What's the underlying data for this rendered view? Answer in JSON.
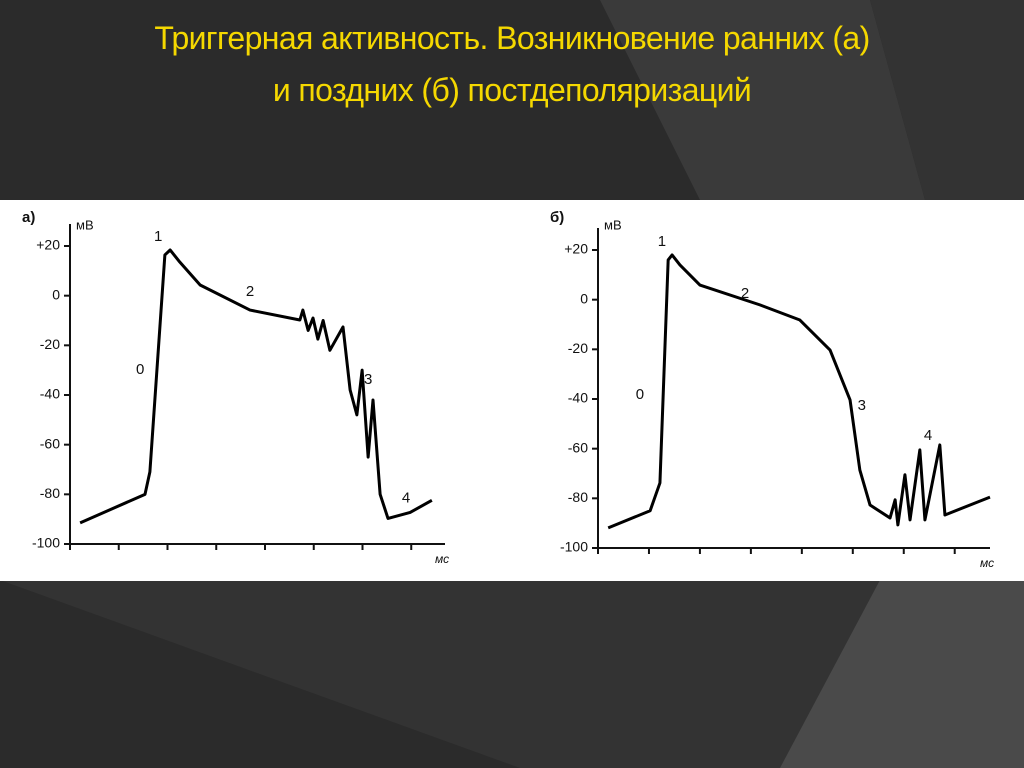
{
  "title": [
    "Триггерная активность. Возникновение ранних (а)",
    "и поздних (б) постдеполяризаций"
  ],
  "chart_data": [
    {
      "type": "line",
      "panel_label": "а)",
      "y_label": "мВ",
      "x_label": "мс",
      "xlim": [
        0,
        100
      ],
      "ylim": [
        -100,
        20
      ],
      "xticks": [
        0,
        13,
        26,
        39,
        52,
        65,
        78,
        91
      ],
      "yticks": [
        {
          "value": 20,
          "label": "+20"
        },
        0,
        -20,
        -40,
        -60,
        -80,
        -100
      ],
      "color": "#000000",
      "series": [
        {
          "x": [
            2.7,
            20,
            21.3,
            25.3,
            26.7,
            29.3,
            34.7,
            48,
            61.3,
            62.1,
            63.5,
            64.8,
            66.1,
            67.5,
            69.3,
            72.8,
            74.7,
            76.5,
            77.9,
            79.5,
            80.8,
            82.7,
            84.8,
            90.7,
            96.5
          ],
          "values": [
            -91.5,
            -80,
            -71,
            16.4,
            18.4,
            13.5,
            4.3,
            -5.8,
            -9.8,
            -5.8,
            -14,
            -9,
            -17.5,
            -10,
            -22,
            -12.6,
            -38,
            -48,
            -30,
            -65,
            -42,
            -80,
            -89.7,
            -87.3,
            -82.4
          ]
        }
      ],
      "annotations": [
        {
          "text": "1",
          "x": 23.5,
          "y": 23.6
        },
        {
          "text": "2",
          "x": 48,
          "y": 1.5
        },
        {
          "text": "0",
          "x": 18.7,
          "y": -30
        },
        {
          "text": "3",
          "x": 79.5,
          "y": -34
        },
        {
          "text": "4",
          "x": 89.6,
          "y": -81.6
        }
      ]
    },
    {
      "type": "line",
      "panel_label": "б)",
      "y_label": "мВ",
      "x_label": "мс",
      "xlim": [
        0,
        100
      ],
      "ylim": [
        -100,
        20
      ],
      "xticks": [
        0,
        13,
        26,
        39,
        52,
        65,
        78,
        91
      ],
      "yticks": [
        {
          "value": 20,
          "label": "+20"
        },
        0,
        -20,
        -40,
        -60,
        -80,
        -100
      ],
      "color": "#000000",
      "series": [
        {
          "x": [
            2.6,
            13.3,
            15.8,
            17.9,
            18.9,
            20.9,
            26,
            41.3,
            51.5,
            59.2,
            64.3,
            66.8,
            69.4,
            74.5,
            75.8,
            76.5,
            78.3,
            79.6,
            82.1,
            83.4,
            87.2,
            88.5,
            100
          ],
          "values": [
            -91.9,
            -85,
            -73.8,
            16,
            18,
            14,
            5.9,
            -2.1,
            -8.2,
            -20.3,
            -40.4,
            -68.6,
            -82.7,
            -87.9,
            -80.6,
            -90.7,
            -70.5,
            -88.7,
            -60.5,
            -88.7,
            -58.5,
            -86.7,
            -79.5
          ]
        }
      ],
      "annotations": [
        {
          "text": "1",
          "x": 16.3,
          "y": 23.2
        },
        {
          "text": "2",
          "x": 37.5,
          "y": 2.3
        },
        {
          "text": "0",
          "x": 10.7,
          "y": -38.4
        },
        {
          "text": "3",
          "x": 67.3,
          "y": -42.8
        },
        {
          "text": "4",
          "x": 84.2,
          "y": -54.9
        }
      ]
    }
  ]
}
